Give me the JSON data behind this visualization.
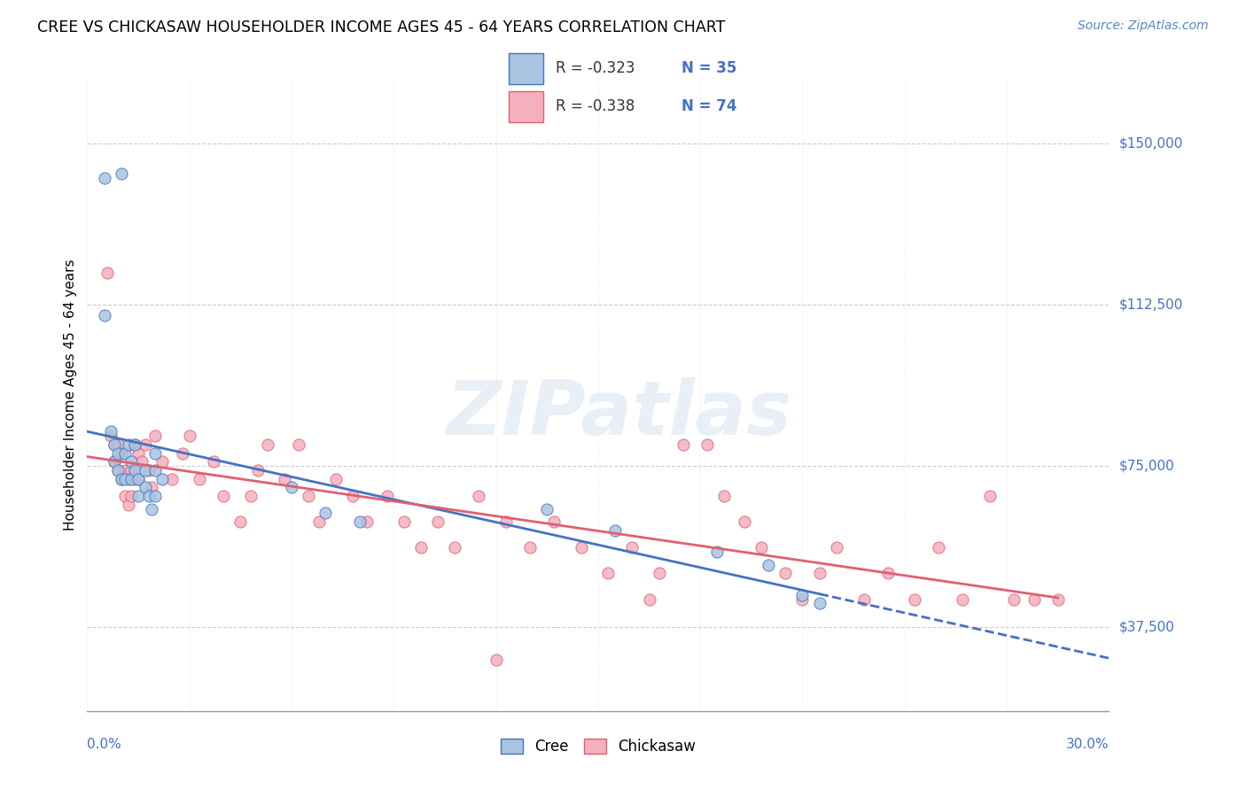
{
  "title": "CREE VS CHICKASAW HOUSEHOLDER INCOME AGES 45 - 64 YEARS CORRELATION CHART",
  "source": "Source: ZipAtlas.com",
  "ylabel": "Householder Income Ages 45 - 64 years",
  "ytick_labels": [
    "$37,500",
    "$75,000",
    "$112,500",
    "$150,000"
  ],
  "ytick_values": [
    37500,
    75000,
    112500,
    150000
  ],
  "xmin": 0.0,
  "xmax": 0.3,
  "ymin": 18000,
  "ymax": 165000,
  "watermark": "ZIPatlas",
  "cree_fill": "#a8c4e0",
  "cree_edge": "#4472c4",
  "chick_fill": "#f4b0be",
  "chick_edge": "#e06070",
  "legend_R_cree": "R = -0.323",
  "legend_N_cree": "N = 35",
  "legend_R_chick": "R = -0.338",
  "legend_N_chick": "N = 74",
  "cree_x": [
    0.005,
    0.01,
    0.005,
    0.007,
    0.008,
    0.008,
    0.009,
    0.009,
    0.01,
    0.011,
    0.011,
    0.012,
    0.013,
    0.013,
    0.014,
    0.014,
    0.015,
    0.015,
    0.017,
    0.017,
    0.018,
    0.019,
    0.02,
    0.02,
    0.02,
    0.022,
    0.06,
    0.07,
    0.08,
    0.135,
    0.155,
    0.185,
    0.2,
    0.21,
    0.215
  ],
  "cree_y": [
    142000,
    143000,
    110000,
    83000,
    80000,
    76000,
    78000,
    74000,
    72000,
    78000,
    72000,
    80000,
    76000,
    72000,
    80000,
    74000,
    72000,
    68000,
    74000,
    70000,
    68000,
    65000,
    78000,
    74000,
    68000,
    72000,
    70000,
    64000,
    62000,
    65000,
    60000,
    55000,
    52000,
    45000,
    43000
  ],
  "chick_x": [
    0.006,
    0.007,
    0.008,
    0.008,
    0.009,
    0.009,
    0.01,
    0.01,
    0.011,
    0.011,
    0.012,
    0.012,
    0.013,
    0.013,
    0.014,
    0.014,
    0.015,
    0.015,
    0.016,
    0.017,
    0.018,
    0.019,
    0.02,
    0.022,
    0.025,
    0.028,
    0.03,
    0.033,
    0.037,
    0.04,
    0.045,
    0.048,
    0.05,
    0.053,
    0.058,
    0.062,
    0.065,
    0.068,
    0.073,
    0.078,
    0.082,
    0.088,
    0.093,
    0.098,
    0.103,
    0.108,
    0.115,
    0.123,
    0.13,
    0.137,
    0.145,
    0.153,
    0.16,
    0.168,
    0.175,
    0.182,
    0.187,
    0.193,
    0.198,
    0.205,
    0.21,
    0.215,
    0.22,
    0.228,
    0.235,
    0.243,
    0.25,
    0.257,
    0.265,
    0.272,
    0.278,
    0.285,
    0.165,
    0.12
  ],
  "chick_y": [
    120000,
    82000,
    80000,
    76000,
    80000,
    74000,
    78000,
    72000,
    74000,
    68000,
    72000,
    66000,
    74000,
    68000,
    80000,
    72000,
    78000,
    72000,
    76000,
    80000,
    74000,
    70000,
    82000,
    76000,
    72000,
    78000,
    82000,
    72000,
    76000,
    68000,
    62000,
    68000,
    74000,
    80000,
    72000,
    80000,
    68000,
    62000,
    72000,
    68000,
    62000,
    68000,
    62000,
    56000,
    62000,
    56000,
    68000,
    62000,
    56000,
    62000,
    56000,
    50000,
    56000,
    50000,
    80000,
    80000,
    68000,
    62000,
    56000,
    50000,
    44000,
    50000,
    56000,
    44000,
    50000,
    44000,
    56000,
    44000,
    68000,
    44000,
    44000,
    44000,
    44000,
    30000
  ]
}
